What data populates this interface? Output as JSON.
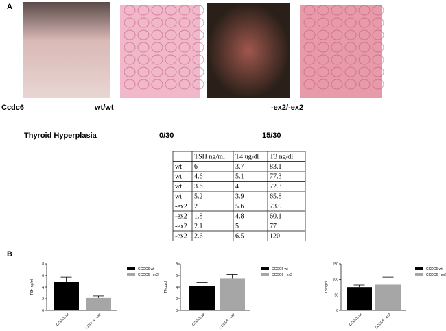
{
  "panel_a": {
    "label": "A",
    "genotype_label": "Ccdc6",
    "wt_label": "wt/wt",
    "mut_label": "-ex2/-ex2",
    "phenotype_label": "Thyroid Hyperplasia",
    "wt_count": "0/30",
    "mut_count": "15/30"
  },
  "table": {
    "header": [
      "TSH ng/ml",
      "T4 ug/dl",
      "T3 ng/dl"
    ],
    "rows": [
      [
        "wt",
        6,
        3.7,
        83.1
      ],
      [
        "wt",
        4.6,
        5.1,
        77.3
      ],
      [
        "wt",
        3.6,
        4,
        72.3
      ],
      [
        "wt",
        5.2,
        3.9,
        65.8
      ],
      [
        "-ex2",
        2,
        5.6,
        73.9
      ],
      [
        "-ex2",
        1.8,
        4.8,
        60.1
      ],
      [
        "-ex2",
        2.1,
        5,
        77
      ],
      [
        "-ex2",
        2.6,
        6.5,
        120
      ]
    ]
  },
  "panel_b": {
    "label": "B"
  },
  "chart_data": [
    {
      "type": "bar",
      "y_label": "TSH ng/ml",
      "categories": [
        "CCDC6 wt",
        "CCDC6 - ex2"
      ],
      "values": [
        4.85,
        2.13
      ],
      "errors": [
        0.9,
        0.35
      ],
      "colors": [
        "#000000",
        "#a6a6a6"
      ],
      "legend": [
        "CCDC6 wt",
        "CCDC6 - ex2"
      ],
      "ylim": [
        0,
        8
      ],
      "yticks": [
        0,
        2,
        4,
        6,
        8
      ]
    },
    {
      "type": "bar",
      "y_label": "T4 ug/dl",
      "categories": [
        "CCDC6 wt",
        "CCDC6 - ex2"
      ],
      "values": [
        4.18,
        5.48
      ],
      "errors": [
        0.6,
        0.7
      ],
      "colors": [
        "#000000",
        "#a6a6a6"
      ],
      "legend": [
        "CCDC6 wt",
        "CCDC6 - ex2"
      ],
      "ylim": [
        0,
        8
      ],
      "yticks": [
        0,
        2,
        4,
        6,
        8
      ]
    },
    {
      "type": "bar",
      "y_label": "T3 ng/dl",
      "categories": [
        "CCDC6 wt",
        "CCDC6 - ex2"
      ],
      "values": [
        74.6,
        82.8
      ],
      "errors": [
        7,
        25
      ],
      "colors": [
        "#000000",
        "#a6a6a6"
      ],
      "legend": [
        "CCDC6 wt",
        "CCDC6 - ex2"
      ],
      "ylim": [
        0,
        150
      ],
      "yticks": [
        0,
        50,
        100,
        150
      ]
    }
  ]
}
